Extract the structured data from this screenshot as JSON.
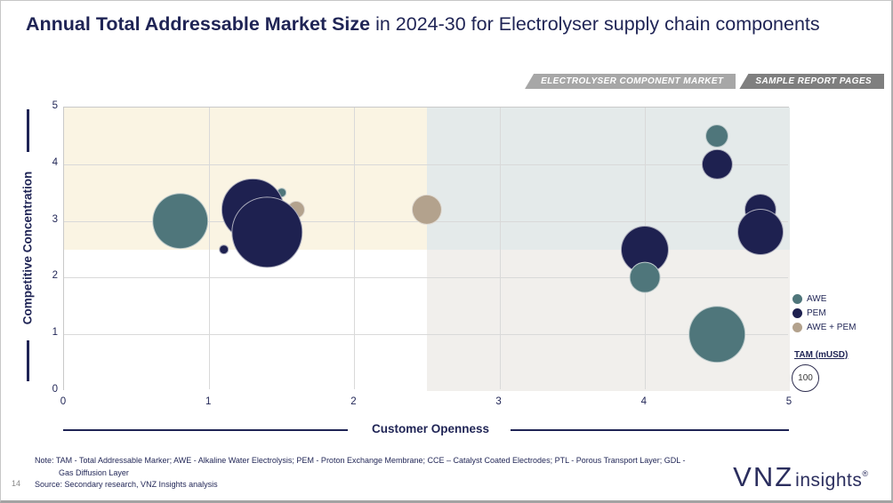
{
  "header": {
    "title_bold": "Annual Total Addressable Market Size",
    "title_rest": " in 2024-30 for Electrolyser supply chain components",
    "badges": [
      {
        "label": "ELECTROLYSER COMPONENT MARKET",
        "bg": "#a7a7a7"
      },
      {
        "label": "SAMPLE REPORT PAGES",
        "bg": "#7f7f7f"
      }
    ]
  },
  "chart_data": {
    "type": "scatter",
    "variant": "bubble",
    "xlabel": "Customer Openness",
    "ylabel": "Competitive Concentration",
    "xlim": [
      0,
      5
    ],
    "ylim": [
      0,
      5
    ],
    "x_ticks": [
      "0",
      "1",
      "2",
      "3",
      "4",
      "5"
    ],
    "y_ticks": [
      "0",
      "1",
      "2",
      "3",
      "4",
      "5"
    ],
    "grid": true,
    "quadrant_split": {
      "x": 2.5,
      "y": 2.5
    },
    "quadrant_colors": {
      "top_left": "#faf4e3",
      "top_right": "#e4eaea",
      "bottom_left": "#ffffff",
      "bottom_right": "#f1efec"
    },
    "series": [
      {
        "name": "AWE",
        "color": "#4f767b"
      },
      {
        "name": "PEM",
        "color": "#1e2150"
      },
      {
        "name": "AWE + PEM",
        "color": "#b3a28d"
      }
    ],
    "legend": {
      "position": "right",
      "size_title": "TAM (mUSD)",
      "size_reference": {
        "label": "100",
        "tam": 100,
        "radius_px": 15
      }
    },
    "points": [
      {
        "series": "AWE",
        "x": 0.8,
        "y": 3.0,
        "tam": 450
      },
      {
        "series": "PEM",
        "x": 1.3,
        "y": 3.2,
        "tam": 550
      },
      {
        "series": "PEM",
        "x": 1.4,
        "y": 2.8,
        "tam": 700
      },
      {
        "series": "AWE",
        "x": 1.5,
        "y": 3.5,
        "tam": 15
      },
      {
        "series": "AWE + PEM",
        "x": 1.6,
        "y": 3.2,
        "tam": 45
      },
      {
        "series": "PEM",
        "x": 1.1,
        "y": 2.5,
        "tam": 15
      },
      {
        "series": "AWE + PEM",
        "x": 2.5,
        "y": 3.2,
        "tam": 130
      },
      {
        "series": "AWE",
        "x": 4.5,
        "y": 4.5,
        "tam": 75
      },
      {
        "series": "PEM",
        "x": 4.5,
        "y": 4.0,
        "tam": 130
      },
      {
        "series": "PEM",
        "x": 4.8,
        "y": 3.2,
        "tam": 145
      },
      {
        "series": "PEM",
        "x": 4.8,
        "y": 2.8,
        "tam": 300
      },
      {
        "series": "PEM",
        "x": 4.0,
        "y": 2.5,
        "tam": 325
      },
      {
        "series": "AWE",
        "x": 4.0,
        "y": 2.0,
        "tam": 135
      },
      {
        "series": "AWE",
        "x": 4.5,
        "y": 1.0,
        "tam": 450
      }
    ]
  },
  "footer": {
    "note_line1": "Note:  TAM - Total Addressable Marker; AWE - Alkaline Water Electrolysis; PEM - Proton Exchange Membrane; CCE – Catalyst Coated Electrodes; PTL - Porous Transport Layer; GDL -",
    "note_line2": "Gas Diffusion Layer",
    "source_line": "Source: Secondary research, VNZ Insights analysis",
    "page_number": "14",
    "logo_brand": "VNZ",
    "logo_suffix": "insights",
    "logo_mark": "®"
  }
}
